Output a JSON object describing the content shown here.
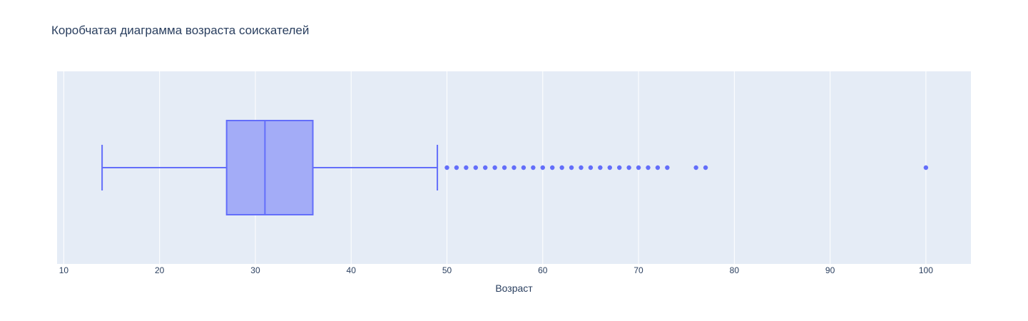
{
  "chart_data": {
    "type": "box",
    "title": "Коробчатая диаграмма возраста соискателей",
    "xlabel": "Возраст",
    "ylabel": "",
    "orientation": "horizontal",
    "xlim": [
      9.3,
      104.7
    ],
    "xticks": [
      10,
      20,
      30,
      40,
      50,
      60,
      70,
      80,
      90,
      100
    ],
    "grid": true,
    "box": {
      "lower_fence": 14,
      "q1": 27,
      "median": 31,
      "q3": 36,
      "upper_fence": 49
    },
    "outliers": [
      50,
      51,
      52,
      53,
      54,
      55,
      56,
      57,
      58,
      59,
      60,
      61,
      62,
      63,
      64,
      65,
      66,
      67,
      68,
      69,
      70,
      71,
      72,
      73,
      76,
      77,
      100
    ],
    "colors": {
      "plot_bg": "#e5ecf6",
      "grid": "#ffffff",
      "box_line": "#636efa",
      "box_fill": "#a3acf7",
      "text": "#2a3f5f"
    }
  }
}
